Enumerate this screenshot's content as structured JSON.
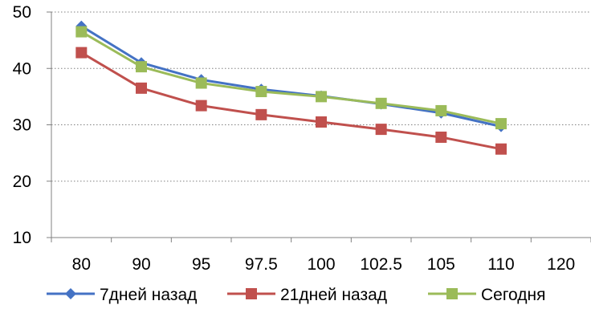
{
  "chart_data": {
    "type": "line",
    "categories": [
      "80",
      "90",
      "95",
      "97.5",
      "100",
      "102.5",
      "105",
      "110",
      "120"
    ],
    "ylim": [
      10,
      50
    ],
    "yticks": [
      10,
      20,
      30,
      40,
      50
    ],
    "grid": "horizontal dotted",
    "legend_position": "bottom",
    "series": [
      {
        "name": "7дней назад",
        "color": "#4472C4",
        "marker": "diamond",
        "values": [
          47.5,
          41,
          38,
          36.3,
          35.1,
          33.7,
          32.1,
          29.7,
          null
        ]
      },
      {
        "name": "21дней назад",
        "color": "#C0504D",
        "marker": "square",
        "values": [
          42.8,
          36.5,
          33.4,
          31.8,
          30.5,
          29.2,
          27.8,
          25.7,
          null
        ]
      },
      {
        "name": "Сегодня",
        "color": "#9BBB59",
        "marker": "square",
        "values": [
          46.5,
          40.3,
          37.4,
          35.9,
          35,
          33.8,
          32.5,
          30.2,
          null
        ]
      }
    ]
  }
}
